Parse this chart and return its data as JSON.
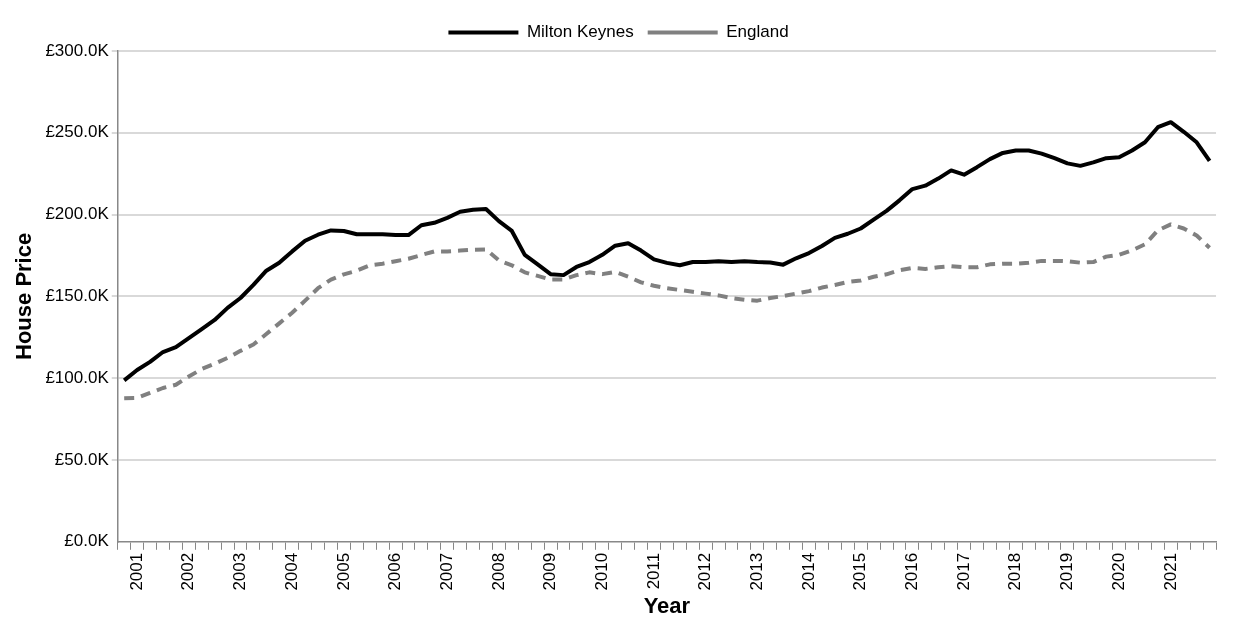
{
  "chart_data": {
    "type": "line",
    "xlabel": "Year",
    "ylabel": "House Price",
    "categories": [
      null,
      "2001",
      null,
      null,
      null,
      "2002",
      null,
      null,
      null,
      "2003",
      null,
      null,
      null,
      "2004",
      null,
      null,
      null,
      "2005",
      null,
      null,
      null,
      "2006",
      null,
      null,
      null,
      "2007",
      null,
      null,
      null,
      "2008",
      null,
      null,
      null,
      "2009",
      null,
      null,
      null,
      "2010",
      null,
      null,
      null,
      "2011",
      null,
      null,
      null,
      "2012",
      null,
      null,
      null,
      "2013",
      null,
      null,
      null,
      "2014",
      null,
      null,
      null,
      "2015",
      null,
      null,
      null,
      "2016",
      null,
      null,
      null,
      "2017",
      null,
      null,
      null,
      "2018",
      null,
      null,
      null,
      "2019",
      null,
      null,
      null,
      "2020",
      null,
      null,
      null,
      "2021",
      null,
      null,
      null
    ],
    "series": [
      {
        "name": "Milton Keynes",
        "color": "#000000",
        "line_style": "solid",
        "values": [
          98.7,
          105,
          110,
          116,
          119,
          124.5,
          130,
          135.6,
          143,
          149,
          157,
          165.7,
          170.6,
          177.5,
          184,
          187.7,
          190.3,
          190,
          188,
          188,
          188,
          187.5,
          187.5,
          193.5,
          195,
          198,
          201.7,
          203,
          203.4,
          196,
          190,
          175.4,
          169.6,
          163.6,
          163,
          168,
          171,
          175.4,
          181,
          182.5,
          178,
          172.6,
          170.5,
          169,
          171,
          171,
          171.5,
          171,
          171.5,
          171,
          170.7,
          169.4,
          173.3,
          176.5,
          180.8,
          185.8,
          188.3,
          191.5,
          196.9,
          202.3,
          208.7,
          215.6,
          217.7,
          222,
          227,
          224.4,
          229,
          233.9,
          237.7,
          239.2,
          239.2,
          237.3,
          234.5,
          231.3,
          229.8,
          231.9,
          234.5,
          235,
          239.2,
          244.2,
          253.4,
          256.5,
          250.6,
          244.2,
          232.8
        ]
      },
      {
        "name": "England",
        "color": "#808080",
        "line_style": "dashed",
        "values": [
          87.8,
          88,
          91,
          94,
          96,
          101,
          105.6,
          108.8,
          112.4,
          116.7,
          120.6,
          127,
          133.5,
          140,
          147.4,
          155,
          160.3,
          163.5,
          165.7,
          169,
          170,
          171.5,
          173,
          175.3,
          177.5,
          177.5,
          178,
          178.5,
          178.7,
          172,
          169,
          164.7,
          162.5,
          160.3,
          160.3,
          163,
          164.7,
          163.6,
          165,
          162,
          158.6,
          156.5,
          155,
          153.9,
          152.8,
          151.7,
          150.6,
          149,
          148,
          147.4,
          149,
          150.2,
          151.7,
          153.2,
          155.4,
          157,
          158.8,
          159.7,
          162,
          163.5,
          166,
          167.4,
          166.8,
          167.8,
          168.5,
          167.8,
          167.8,
          169.6,
          170,
          170,
          170.6,
          171.7,
          171.7,
          171.5,
          170.6,
          171,
          174.3,
          175.4,
          178.2,
          181.8,
          190.4,
          194,
          191.5,
          187.2,
          179.7
        ]
      }
    ],
    "ylim": [
      0,
      300
    ],
    "yticks": [
      {
        "value": 0,
        "label": "£0.0K"
      },
      {
        "value": 50,
        "label": "£50.0K"
      },
      {
        "value": 100,
        "label": "£100.0K"
      },
      {
        "value": 150,
        "label": "£150.0K"
      },
      {
        "value": 200,
        "label": "£200.0K"
      },
      {
        "value": 250,
        "label": "£250.0K"
      },
      {
        "value": 300,
        "label": "£300.0K"
      }
    ],
    "grid": "y",
    "legend": "top",
    "marker": "none"
  }
}
